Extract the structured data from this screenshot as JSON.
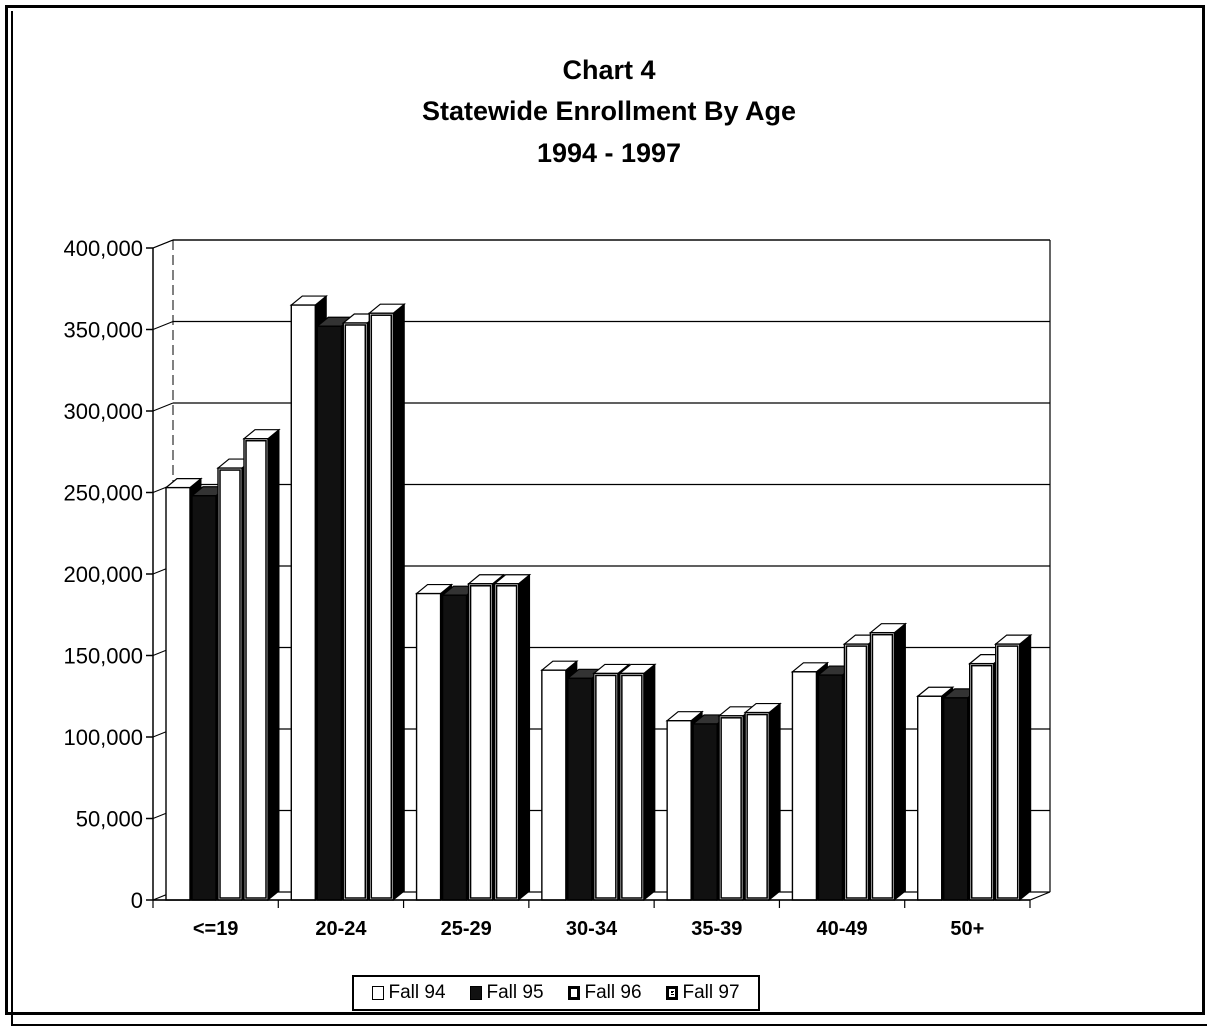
{
  "chart_data": {
    "type": "bar",
    "title_lines": [
      "Chart 4",
      "Statewide Enrollment By Age",
      "1994 - 1997"
    ],
    "categories": [
      "<=19",
      "20-24",
      "25-29",
      "30-34",
      "35-39",
      "40-49",
      "50+"
    ],
    "series": [
      {
        "name": "Fall 94",
        "values": [
          253000,
          365000,
          188000,
          141000,
          110000,
          140000,
          125000
        ],
        "color": "#ffffff"
      },
      {
        "name": "Fall 95",
        "values": [
          248000,
          352000,
          187000,
          136000,
          108000,
          138000,
          124000
        ],
        "color": "#111111"
      },
      {
        "name": "Fall 96",
        "values": [
          265000,
          354000,
          194000,
          139000,
          113000,
          157000,
          145000
        ],
        "color": "#ffffff"
      },
      {
        "name": "Fall 97",
        "values": [
          283000,
          360000,
          194000,
          139000,
          115000,
          164000,
          157000
        ],
        "color": "#ffffff"
      }
    ],
    "yticks": [
      "400,000",
      "350,000",
      "300,000",
      "250,000",
      "200,000",
      "150,000",
      "100,000",
      "50,000",
      "0"
    ],
    "ylim": [
      0,
      400000
    ],
    "grid": true,
    "legend_position": "bottom"
  }
}
